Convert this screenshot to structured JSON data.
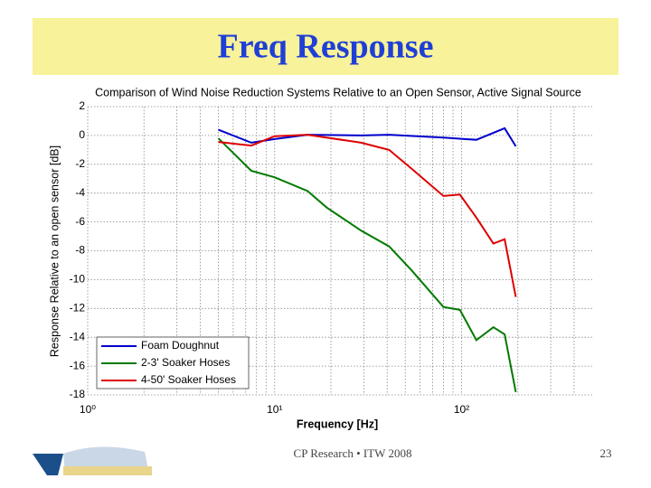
{
  "slide_title": "Freq Response",
  "chart_data": {
    "type": "line",
    "title": "Comparison of Wind Noise Reduction Systems Relative to an Open Sensor, Active Signal Source",
    "x_label": "Frequency [Hz]",
    "y_label": "Response Relative to an open sensor [dB]",
    "xscale": "log",
    "grid": true,
    "legend": "lower left",
    "xlim": [
      1,
      500
    ],
    "ylim": [
      -18,
      2
    ],
    "xticks": [
      {
        "value": 1,
        "label": "10⁰"
      },
      {
        "value": 10,
        "label": "10¹"
      },
      {
        "value": 100,
        "label": "10²"
      }
    ],
    "yticks": [
      -18,
      -16,
      -14,
      -12,
      -10,
      -8,
      -6,
      -4,
      -2,
      0,
      2
    ],
    "series": [
      {
        "name": "Foam Doughnut",
        "color": "#0000cc",
        "x": [
          5,
          7.5,
          10,
          15,
          29,
          41,
          80,
          120,
          170,
          195
        ],
        "values": [
          0.4,
          -0.5,
          -0.25,
          0.05,
          0,
          0.05,
          -0.15,
          -0.3,
          0.5,
          -0.75
        ]
      },
      {
        "name": "2-3' Soaker Hoses",
        "color": "#007a00",
        "x": [
          5,
          7.5,
          10,
          15,
          19,
          29,
          41,
          54,
          80,
          98,
          120,
          148,
          170,
          195
        ],
        "values": [
          -0.2,
          -2.45,
          -2.9,
          -3.85,
          -5,
          -6.6,
          -7.7,
          -9.35,
          -11.9,
          -12.1,
          -14.2,
          -13.3,
          -13.8,
          -17.8
        ]
      },
      {
        "name": "4-50' Soaker Hoses",
        "color": "#dd0000",
        "x": [
          5,
          7.5,
          10,
          15,
          29,
          41,
          54,
          80,
          98,
          120,
          148,
          170,
          195
        ],
        "values": [
          -0.45,
          -0.7,
          -0.05,
          0.05,
          -0.5,
          -1.0,
          -2.3,
          -4.2,
          -4.1,
          -5.7,
          -7.5,
          -7.2,
          -11.2
        ]
      }
    ]
  },
  "footer": {
    "text": "CP Research • ITW 2008",
    "page": "23"
  }
}
